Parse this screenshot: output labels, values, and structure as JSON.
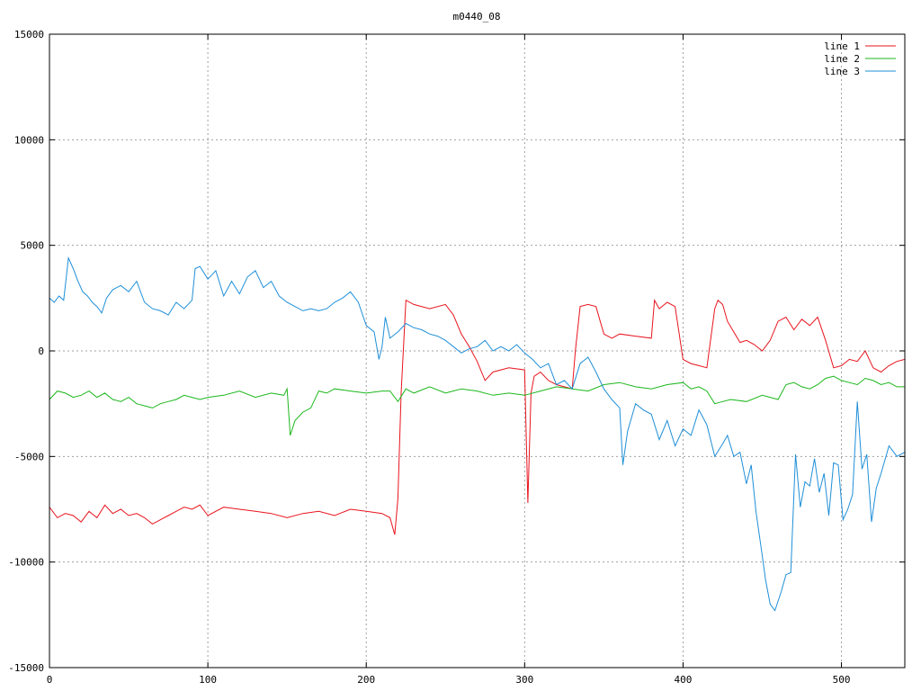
{
  "chart_data": {
    "type": "line",
    "title": "m0440_08",
    "xlabel": "",
    "ylabel": "",
    "xlim": [
      0,
      540
    ],
    "ylim": [
      -15000,
      15000
    ],
    "xticks": [
      0,
      100,
      200,
      300,
      400,
      500
    ],
    "yticks": [
      -15000,
      -10000,
      -5000,
      0,
      5000,
      10000,
      15000
    ],
    "xtick_labels": [
      "0",
      "100",
      "200",
      "300",
      "400",
      "500"
    ],
    "ytick_labels": [
      "-15000",
      "-10000",
      "-5000",
      "0",
      "5000",
      "10000",
      "15000"
    ],
    "grid": true,
    "legend_position": "top-right",
    "series": [
      {
        "name": "line 1",
        "color": "#e8141d",
        "x": [
          0,
          5,
          10,
          15,
          20,
          25,
          30,
          35,
          40,
          45,
          50,
          55,
          60,
          65,
          70,
          75,
          80,
          85,
          90,
          95,
          100,
          110,
          120,
          130,
          140,
          150,
          160,
          170,
          180,
          190,
          200,
          210,
          215,
          218,
          220,
          222,
          225,
          230,
          240,
          250,
          255,
          260,
          265,
          270,
          275,
          280,
          290,
          300,
          302,
          304,
          306,
          310,
          315,
          320,
          325,
          330,
          332,
          335,
          340,
          345,
          350,
          355,
          360,
          370,
          380,
          382,
          385,
          390,
          395,
          400,
          405,
          410,
          415,
          420,
          422,
          425,
          428,
          432,
          436,
          440,
          445,
          450,
          455,
          460,
          465,
          470,
          475,
          480,
          485,
          490,
          495,
          500,
          505,
          510,
          515,
          520,
          525,
          530,
          535,
          540
        ],
        "y": [
          -7400,
          -7900,
          -7700,
          -7800,
          -8100,
          -7600,
          -7900,
          -7300,
          -7700,
          -7500,
          -7800,
          -7700,
          -7900,
          -8200,
          -8000,
          -7800,
          -7600,
          -7400,
          -7500,
          -7300,
          -7800,
          -7400,
          -7500,
          -7600,
          -7700,
          -7900,
          -7700,
          -7600,
          -7800,
          -7500,
          -7600,
          -7700,
          -7900,
          -8700,
          -7000,
          -2000,
          2400,
          2200,
          2000,
          2200,
          1700,
          800,
          200,
          -500,
          -1400,
          -1000,
          -800,
          -900,
          -7200,
          -2000,
          -1200,
          -1000,
          -1400,
          -1600,
          -1700,
          -1800,
          0,
          2100,
          2200,
          2100,
          800,
          600,
          800,
          700,
          600,
          2400,
          2000,
          2300,
          2100,
          -400,
          -600,
          -700,
          -800,
          2000,
          2400,
          2200,
          1400,
          900,
          400,
          500,
          300,
          0,
          500,
          1400,
          1600,
          1000,
          1500,
          1200,
          1600,
          500,
          -800,
          -700,
          -400,
          -500,
          0,
          -800,
          -1000,
          -700,
          -500,
          -400
        ]
      },
      {
        "name": "line 2",
        "color": "#1bb71b",
        "x": [
          0,
          5,
          10,
          15,
          20,
          25,
          30,
          35,
          40,
          45,
          50,
          55,
          60,
          65,
          70,
          75,
          80,
          85,
          90,
          95,
          100,
          110,
          120,
          130,
          140,
          148,
          150,
          152,
          155,
          160,
          165,
          170,
          175,
          180,
          190,
          200,
          210,
          215,
          220,
          225,
          230,
          240,
          250,
          260,
          270,
          280,
          290,
          300,
          310,
          320,
          330,
          340,
          350,
          360,
          370,
          380,
          390,
          400,
          405,
          410,
          415,
          420,
          425,
          430,
          440,
          450,
          460,
          465,
          470,
          475,
          480,
          485,
          490,
          495,
          500,
          505,
          510,
          515,
          520,
          525,
          530,
          535,
          540
        ],
        "y": [
          -2300,
          -1900,
          -2000,
          -2200,
          -2100,
          -1900,
          -2200,
          -2000,
          -2300,
          -2400,
          -2200,
          -2500,
          -2600,
          -2700,
          -2500,
          -2400,
          -2300,
          -2100,
          -2200,
          -2300,
          -2200,
          -2100,
          -1900,
          -2200,
          -2000,
          -2100,
          -1800,
          -4000,
          -3300,
          -2900,
          -2700,
          -1900,
          -2000,
          -1800,
          -1900,
          -2000,
          -1900,
          -1900,
          -2400,
          -1800,
          -2000,
          -1700,
          -2000,
          -1800,
          -1900,
          -2100,
          -2000,
          -2100,
          -1900,
          -1700,
          -1800,
          -1900,
          -1600,
          -1500,
          -1700,
          -1800,
          -1600,
          -1500,
          -1800,
          -1700,
          -1900,
          -2500,
          -2400,
          -2300,
          -2400,
          -2100,
          -2300,
          -1600,
          -1500,
          -1700,
          -1800,
          -1600,
          -1300,
          -1200,
          -1400,
          -1500,
          -1600,
          -1300,
          -1400,
          -1600,
          -1500,
          -1700,
          -1700
        ]
      },
      {
        "name": "line 3",
        "color": "#1f8fd8",
        "x": [
          0,
          3,
          6,
          9,
          12,
          15,
          18,
          21,
          24,
          27,
          30,
          33,
          36,
          40,
          45,
          50,
          55,
          60,
          65,
          70,
          75,
          80,
          85,
          90,
          92,
          95,
          100,
          105,
          110,
          115,
          120,
          125,
          130,
          135,
          140,
          145,
          150,
          155,
          160,
          165,
          170,
          175,
          180,
          185,
          190,
          195,
          200,
          205,
          208,
          210,
          212,
          215,
          220,
          225,
          230,
          235,
          240,
          245,
          250,
          255,
          260,
          265,
          270,
          275,
          280,
          285,
          290,
          295,
          300,
          305,
          310,
          315,
          320,
          325,
          330,
          335,
          340,
          345,
          350,
          355,
          360,
          362,
          365,
          370,
          375,
          380,
          385,
          390,
          395,
          400,
          405,
          410,
          415,
          420,
          425,
          428,
          432,
          436,
          440,
          443,
          446,
          450,
          452,
          455,
          458,
          462,
          465,
          468,
          471,
          474,
          477,
          480,
          483,
          486,
          489,
          492,
          495,
          498,
          501,
          504,
          507,
          510,
          513,
          516,
          519,
          522,
          525,
          530,
          535,
          540
        ],
        "y": [
          2500,
          2300,
          2600,
          2400,
          4400,
          3900,
          3300,
          2800,
          2600,
          2300,
          2100,
          1800,
          2500,
          2900,
          3100,
          2800,
          3300,
          2300,
          2000,
          1900,
          1700,
          2300,
          2000,
          2400,
          3900,
          4000,
          3400,
          3800,
          2600,
          3300,
          2700,
          3500,
          3800,
          3000,
          3300,
          2600,
          2300,
          2100,
          1900,
          2000,
          1900,
          2000,
          2300,
          2500,
          2800,
          2300,
          1200,
          900,
          -400,
          200,
          1600,
          600,
          900,
          1300,
          1100,
          1000,
          800,
          700,
          500,
          200,
          -100,
          100,
          200,
          500,
          0,
          200,
          0,
          300,
          -100,
          -400,
          -800,
          -600,
          -1600,
          -1400,
          -1800,
          -600,
          -300,
          -1000,
          -1800,
          -2300,
          -2700,
          -5400,
          -3800,
          -2500,
          -2800,
          -3000,
          -4200,
          -3300,
          -4500,
          -3700,
          -4000,
          -2800,
          -3500,
          -5000,
          -4400,
          -4000,
          -5000,
          -4800,
          -6300,
          -5400,
          -7600,
          -9700,
          -10800,
          -12000,
          -12300,
          -11400,
          -10600,
          -10500,
          -4900,
          -7400,
          -6200,
          -6400,
          -5100,
          -6700,
          -5800,
          -7800,
          -5300,
          -5400,
          -8000,
          -7500,
          -6800,
          -2400,
          -5600,
          -4900,
          -8100,
          -6500,
          -5800,
          -4500,
          -5000,
          -4800
        ]
      }
    ]
  }
}
